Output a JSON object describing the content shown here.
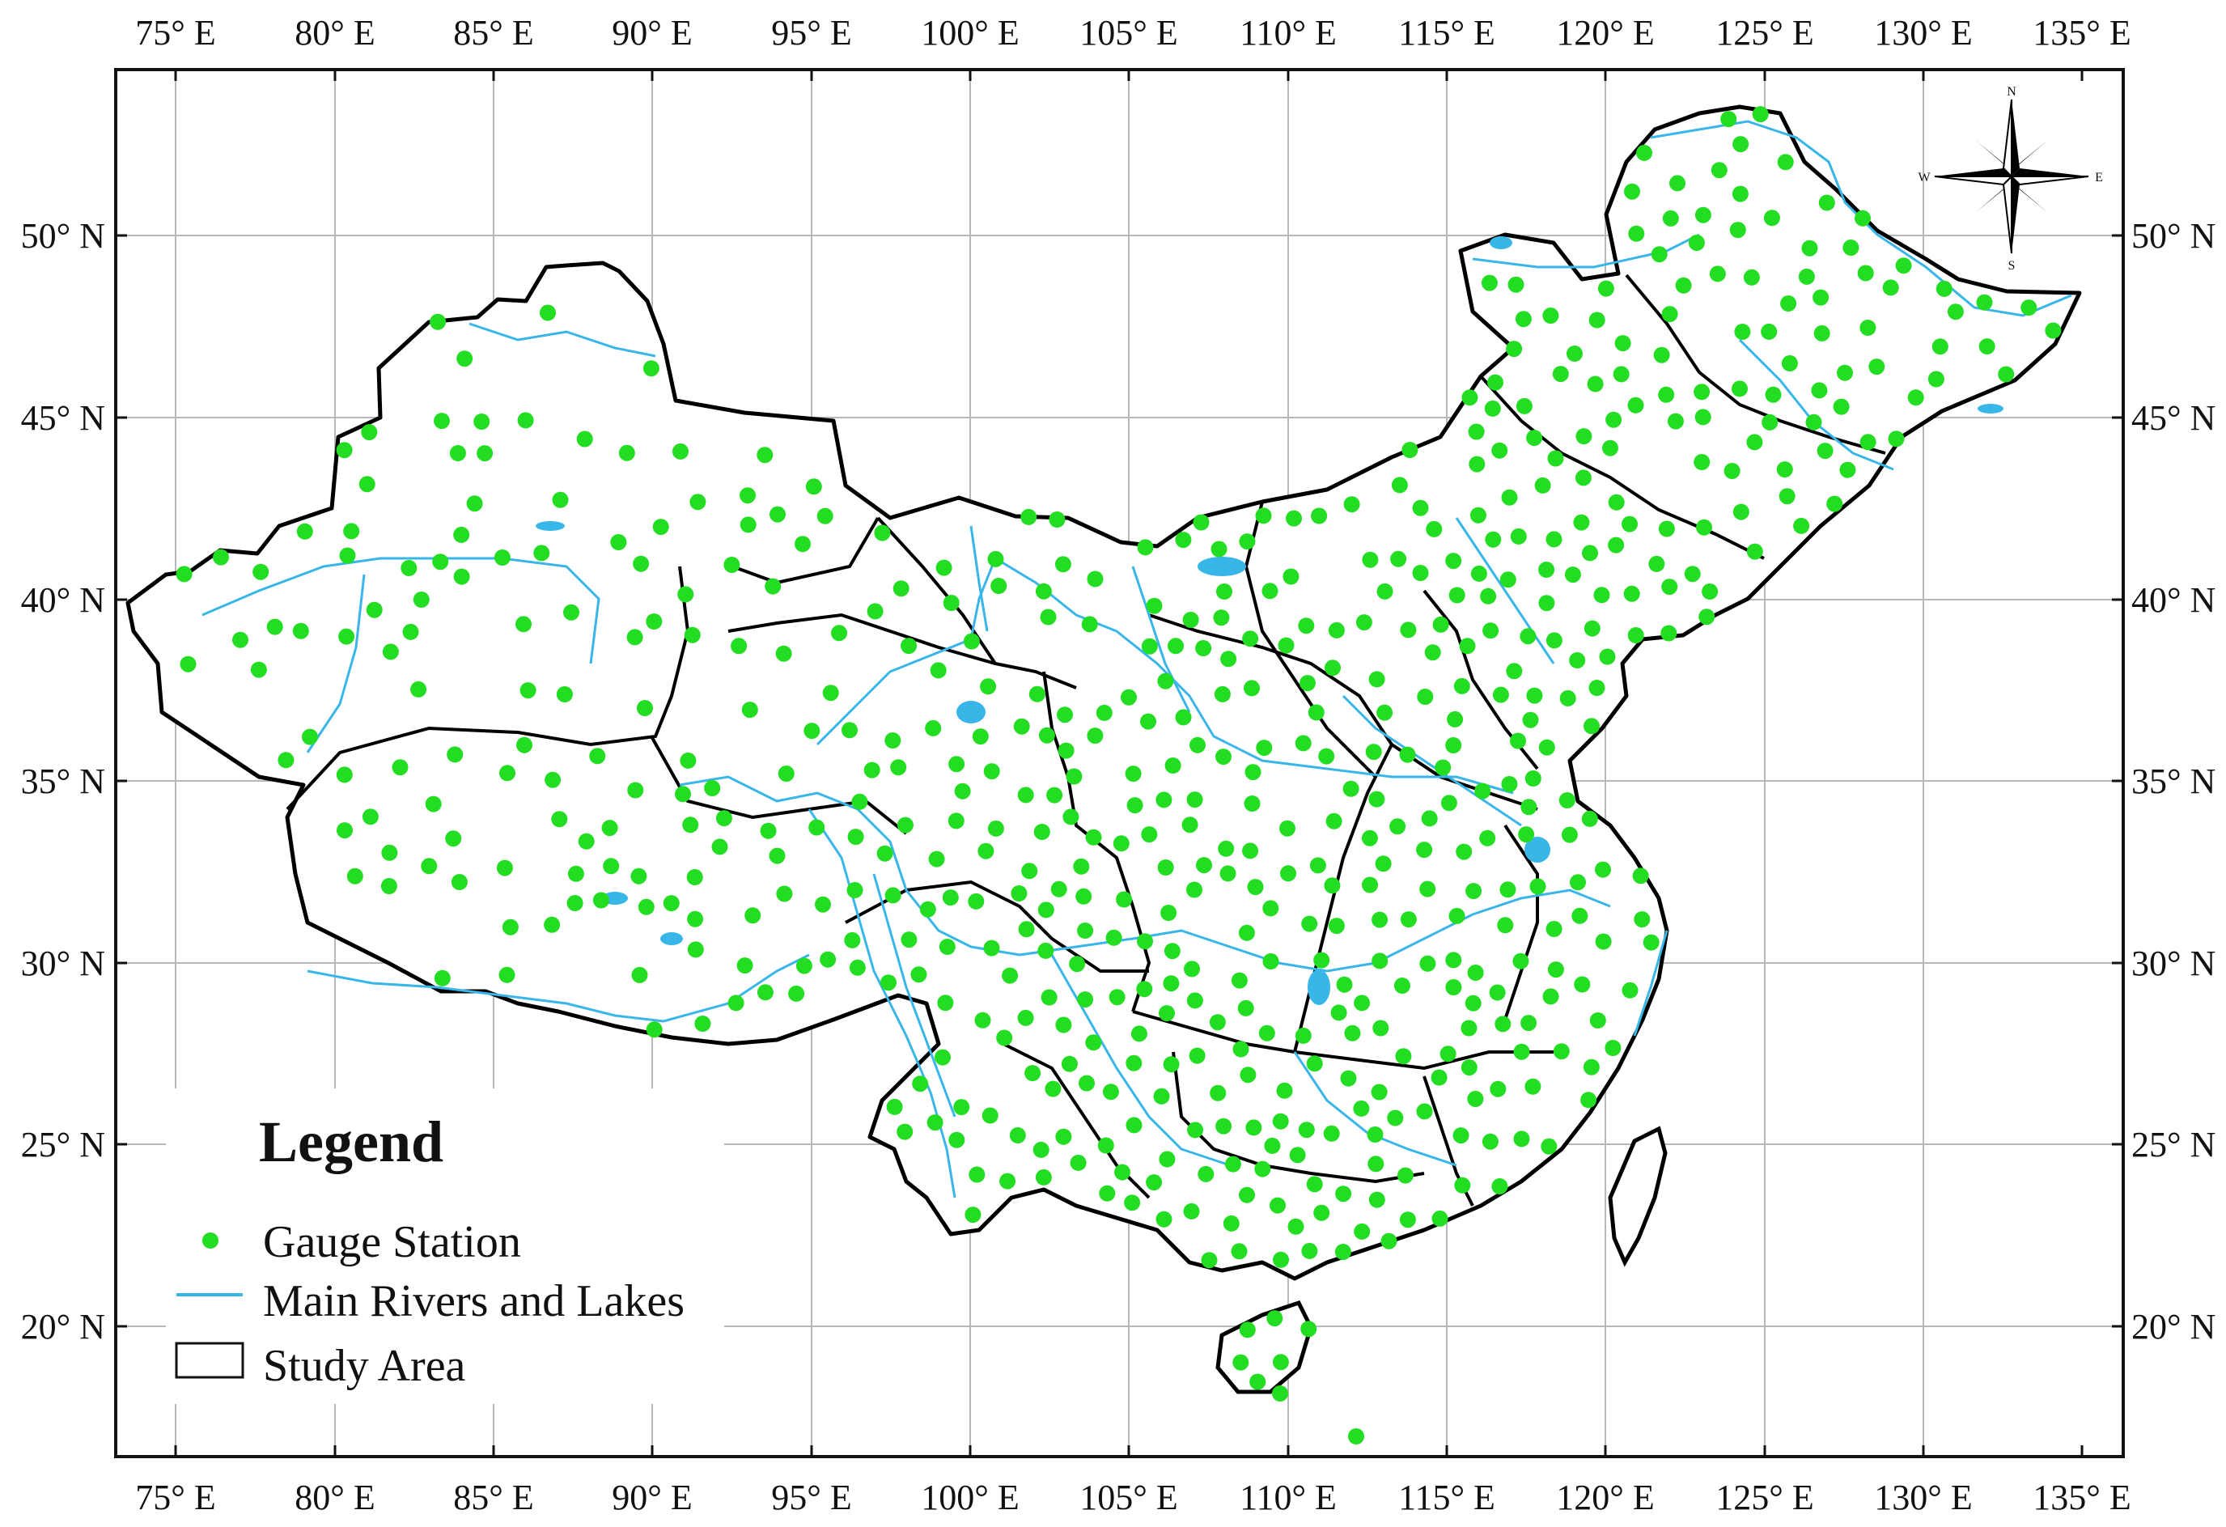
{
  "x_axis_labels": [
    "75° E",
    "80° E",
    "85° E",
    "90° E",
    "95° E",
    "100° E",
    "105° E",
    "110° E",
    "115° E",
    "120° E",
    "125° E",
    "130° E",
    "135° E"
  ],
  "y_axis_labels": [
    "20° N",
    "25° N",
    "30° N",
    "35° N",
    "40° N",
    "45° N",
    "50° N"
  ],
  "legend": {
    "title": "Legend",
    "items": [
      {
        "label": "Gauge Station",
        "symbol": "green-dot"
      },
      {
        "label": "Main Rivers and Lakes",
        "symbol": "blue-line"
      },
      {
        "label": "Study Area",
        "symbol": "black-outline-box"
      }
    ]
  },
  "compass": {
    "n": "N",
    "s": "S",
    "e": "E",
    "w": "W"
  },
  "colors": {
    "station": "#22dd22",
    "river": "#38b6e8",
    "border": "#000000",
    "grid": "#b8b8b8"
  },
  "map_extent": {
    "lon_range": [
      73.5,
      136.5
    ],
    "lat_range": [
      16.5,
      54.5
    ]
  }
}
